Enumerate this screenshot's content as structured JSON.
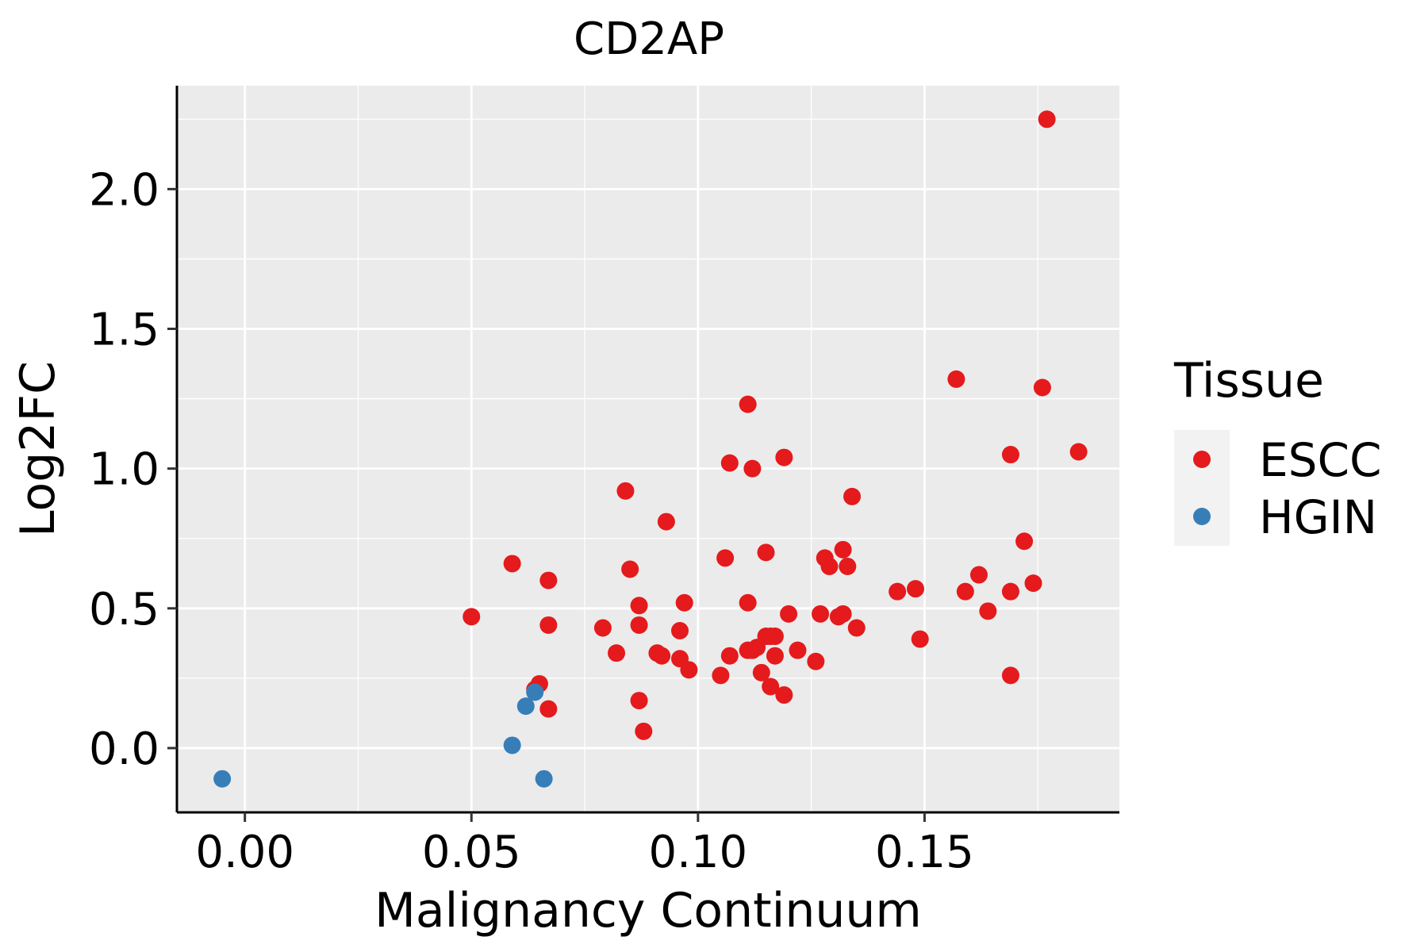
{
  "chart_data": {
    "type": "scatter",
    "title": "CD2AP",
    "xlabel": "Malignancy Continuum",
    "ylabel": "Log2FC",
    "xlim": [
      -0.015,
      0.193
    ],
    "ylim": [
      -0.23,
      2.37
    ],
    "x_ticks": [
      0.0,
      0.05,
      0.1,
      0.15
    ],
    "x_tick_labels": [
      "0.00",
      "0.05",
      "0.10",
      "0.15"
    ],
    "y_ticks": [
      0.0,
      0.5,
      1.0,
      1.5,
      2.0
    ],
    "y_tick_labels": [
      "0.0",
      "0.5",
      "1.0",
      "1.5",
      "2.0"
    ],
    "grid": true,
    "legend": {
      "title": "Tissue",
      "position": "right",
      "entries": [
        {
          "name": "ESCC",
          "color": "#e41a1c"
        },
        {
          "name": "HGIN",
          "color": "#377eb8"
        }
      ]
    },
    "series": [
      {
        "name": "ESCC",
        "color": "#e41a1c",
        "points": [
          [
            0.177,
            2.25
          ],
          [
            0.157,
            1.32
          ],
          [
            0.176,
            1.29
          ],
          [
            0.111,
            1.23
          ],
          [
            0.184,
            1.06
          ],
          [
            0.169,
            1.05
          ],
          [
            0.119,
            1.04
          ],
          [
            0.107,
            1.02
          ],
          [
            0.112,
            1.0
          ],
          [
            0.084,
            0.92
          ],
          [
            0.134,
            0.9
          ],
          [
            0.093,
            0.81
          ],
          [
            0.172,
            0.74
          ],
          [
            0.132,
            0.71
          ],
          [
            0.115,
            0.7
          ],
          [
            0.106,
            0.68
          ],
          [
            0.128,
            0.68
          ],
          [
            0.059,
            0.66
          ],
          [
            0.129,
            0.65
          ],
          [
            0.133,
            0.65
          ],
          [
            0.085,
            0.64
          ],
          [
            0.162,
            0.62
          ],
          [
            0.067,
            0.6
          ],
          [
            0.174,
            0.59
          ],
          [
            0.144,
            0.56
          ],
          [
            0.148,
            0.57
          ],
          [
            0.159,
            0.56
          ],
          [
            0.169,
            0.56
          ],
          [
            0.111,
            0.52
          ],
          [
            0.097,
            0.52
          ],
          [
            0.087,
            0.51
          ],
          [
            0.164,
            0.49
          ],
          [
            0.12,
            0.48
          ],
          [
            0.127,
            0.48
          ],
          [
            0.131,
            0.47
          ],
          [
            0.132,
            0.48
          ],
          [
            0.05,
            0.47
          ],
          [
            0.067,
            0.44
          ],
          [
            0.087,
            0.44
          ],
          [
            0.079,
            0.43
          ],
          [
            0.096,
            0.42
          ],
          [
            0.135,
            0.43
          ],
          [
            0.115,
            0.4
          ],
          [
            0.116,
            0.4
          ],
          [
            0.117,
            0.4
          ],
          [
            0.149,
            0.39
          ],
          [
            0.082,
            0.34
          ],
          [
            0.091,
            0.34
          ],
          [
            0.092,
            0.33
          ],
          [
            0.111,
            0.35
          ],
          [
            0.112,
            0.35
          ],
          [
            0.113,
            0.36
          ],
          [
            0.122,
            0.35
          ],
          [
            0.107,
            0.33
          ],
          [
            0.117,
            0.33
          ],
          [
            0.096,
            0.32
          ],
          [
            0.126,
            0.31
          ],
          [
            0.098,
            0.28
          ],
          [
            0.105,
            0.26
          ],
          [
            0.114,
            0.27
          ],
          [
            0.169,
            0.26
          ],
          [
            0.116,
            0.22
          ],
          [
            0.065,
            0.23
          ],
          [
            0.064,
            0.21
          ],
          [
            0.119,
            0.19
          ],
          [
            0.087,
            0.17
          ],
          [
            0.067,
            0.14
          ],
          [
            0.088,
            0.06
          ]
        ]
      },
      {
        "name": "HGIN",
        "color": "#377eb8",
        "points": [
          [
            0.064,
            0.2
          ],
          [
            0.062,
            0.15
          ],
          [
            0.059,
            0.01
          ],
          [
            0.066,
            -0.11
          ],
          [
            -0.005,
            -0.11
          ]
        ]
      }
    ]
  }
}
